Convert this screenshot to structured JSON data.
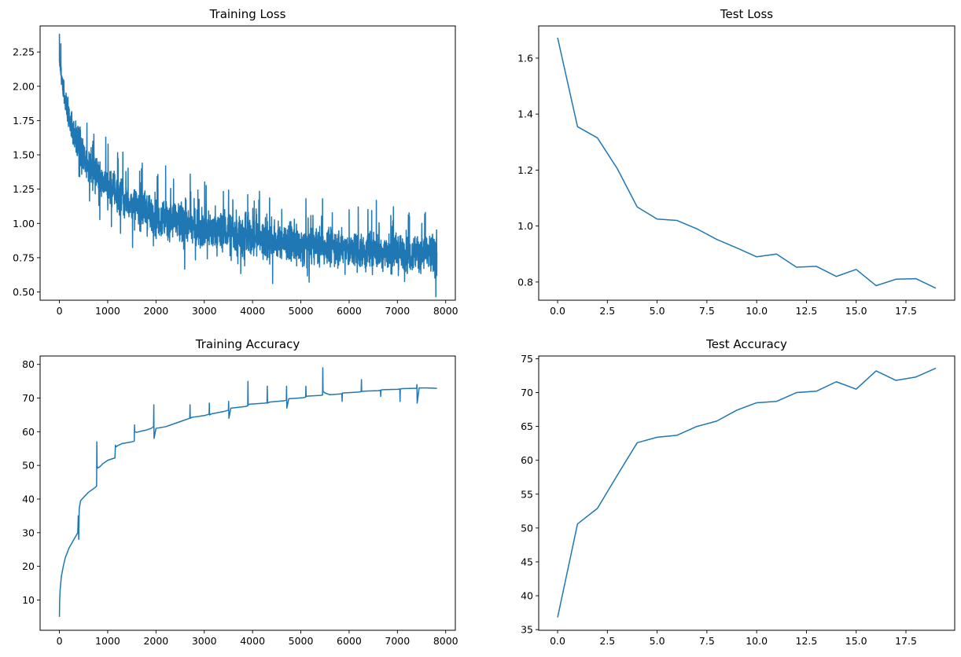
{
  "chart_data": [
    {
      "id": "training-loss",
      "type": "line",
      "title": "Training Loss",
      "xlabel": "",
      "ylabel": "",
      "xlim": [
        -400,
        8200
      ],
      "ylim": [
        0.44,
        2.44
      ],
      "xticks": [
        0,
        1000,
        2000,
        3000,
        4000,
        5000,
        6000,
        7000,
        8000
      ],
      "xtick_labels": [
        "0",
        "1000",
        "2000",
        "3000",
        "4000",
        "5000",
        "6000",
        "7000",
        "8000"
      ],
      "yticks": [
        0.5,
        0.75,
        1.0,
        1.25,
        1.5,
        1.75,
        2.0,
        2.25
      ],
      "ytick_labels": [
        "0.50",
        "0.75",
        "1.00",
        "1.25",
        "1.50",
        "1.75",
        "2.00",
        "2.25"
      ],
      "color": "#1f77b4",
      "series": [
        {
          "name": "training loss",
          "noisy": true,
          "n_points": 7820,
          "x": [
            0,
            50,
            100,
            200,
            300,
            400,
            500,
            750,
            1000,
            1250,
            1500,
            2000,
            2500,
            3000,
            3500,
            4000,
            4500,
            5000,
            5500,
            6000,
            6500,
            7000,
            7500,
            7820
          ],
          "y": [
            2.22,
            2.05,
            1.92,
            1.78,
            1.66,
            1.56,
            1.48,
            1.38,
            1.28,
            1.2,
            1.14,
            1.05,
            1.0,
            0.96,
            0.93,
            0.9,
            0.87,
            0.84,
            0.83,
            0.81,
            0.8,
            0.79,
            0.78,
            0.77
          ],
          "spread": [
            0.1,
            0.11,
            0.12,
            0.13,
            0.14,
            0.15,
            0.15,
            0.15,
            0.15,
            0.15,
            0.15,
            0.16,
            0.16,
            0.16,
            0.16,
            0.16,
            0.16,
            0.16,
            0.15,
            0.15,
            0.15,
            0.15,
            0.15,
            0.15
          ],
          "spikes": [
            [
              0,
              2.38
            ],
            [
              30,
              2.31
            ],
            [
              1700,
              1.4
            ],
            [
              2200,
              1.42
            ],
            [
              3900,
              1.21
            ],
            [
              5450,
              1.18
            ],
            [
              6000,
              1.1
            ],
            [
              7250,
              1.05
            ],
            [
              7580,
              1.08
            ],
            [
              7810,
              0.87
            ],
            [
              7815,
              0.62
            ]
          ]
        }
      ]
    },
    {
      "id": "test-loss",
      "type": "line",
      "title": "Test Loss",
      "xlabel": "",
      "ylabel": "",
      "xlim": [
        -0.95,
        19.95
      ],
      "ylim": [
        0.735,
        1.715
      ],
      "xticks": [
        0,
        2.5,
        5,
        7.5,
        10,
        12.5,
        15,
        17.5
      ],
      "xtick_labels": [
        "0.0",
        "2.5",
        "5.0",
        "7.5",
        "10.0",
        "12.5",
        "15.0",
        "17.5"
      ],
      "yticks": [
        0.8,
        1.0,
        1.2,
        1.4,
        1.6
      ],
      "ytick_labels": [
        "0.8",
        "1.0",
        "1.2",
        "1.4",
        "1.6"
      ],
      "color": "#1f77b4",
      "series": [
        {
          "name": "test loss",
          "x": [
            0,
            1,
            2,
            3,
            4,
            5,
            6,
            7,
            8,
            9,
            10,
            11,
            12,
            13,
            14,
            15,
            16,
            17,
            18,
            19
          ],
          "y": [
            1.673,
            1.355,
            1.315,
            1.205,
            1.068,
            1.025,
            1.02,
            0.99,
            0.952,
            0.922,
            0.89,
            0.9,
            0.853,
            0.856,
            0.82,
            0.845,
            0.787,
            0.81,
            0.812,
            0.778
          ]
        }
      ]
    },
    {
      "id": "training-accuracy",
      "type": "line",
      "title": "Training Accuracy",
      "xlabel": "",
      "ylabel": "",
      "xlim": [
        -400,
        8200
      ],
      "ylim": [
        1.0,
        82.5
      ],
      "xticks": [
        0,
        1000,
        2000,
        3000,
        4000,
        5000,
        6000,
        7000,
        8000
      ],
      "xtick_labels": [
        "0",
        "1000",
        "2000",
        "3000",
        "4000",
        "5000",
        "6000",
        "7000",
        "8000"
      ],
      "yticks": [
        10,
        20,
        30,
        40,
        50,
        60,
        70,
        80
      ],
      "ytick_labels": [
        "10",
        "20",
        "30",
        "40",
        "50",
        "60",
        "70",
        "80"
      ],
      "color": "#1f77b4",
      "series": [
        {
          "name": "training accuracy",
          "x": [
            0,
            5,
            15,
            40,
            80,
            120,
            200,
            300,
            380,
            390,
            400,
            410,
            420,
            440,
            500,
            600,
            700,
            770,
            775,
            780,
            790,
            830,
            900,
            1000,
            1100,
            1150,
            1160,
            1170,
            1200,
            1300,
            1500,
            1550,
            1555,
            1560,
            1600,
            1700,
            1800,
            1900,
            1950,
            1955,
            1960,
            2000,
            2200,
            2400,
            2600,
            2700,
            2705,
            2710,
            2750,
            3000,
            3100,
            3105,
            3110,
            3150,
            3400,
            3500,
            3505,
            3510,
            3550,
            3850,
            3900,
            3905,
            3910,
            3950,
            4250,
            4300,
            4305,
            4310,
            4350,
            4650,
            4700,
            4705,
            4710,
            4750,
            5050,
            5100,
            5105,
            5110,
            5150,
            5400,
            5450,
            5455,
            5460,
            5500,
            5600,
            5800,
            5850,
            5855,
            5860,
            6000,
            6200,
            6250,
            6255,
            6260,
            6400,
            6600,
            6650,
            6655,
            6660,
            6700,
            7000,
            7050,
            7055,
            7060,
            7100,
            7350,
            7400,
            7405,
            7410,
            7450,
            7600,
            7820
          ],
          "y": [
            5,
            10,
            13,
            17,
            20,
            22.5,
            25.5,
            28,
            30,
            35,
            28,
            37,
            38,
            39.5,
            40.5,
            42,
            43,
            43.8,
            57,
            50,
            49.2,
            49.5,
            50.5,
            51.5,
            52,
            52.2,
            56,
            55.5,
            55.8,
            56.5,
            57,
            57.2,
            62,
            60,
            59.8,
            60.2,
            60.5,
            61,
            61.5,
            68,
            58,
            61,
            61.5,
            62.5,
            63.5,
            64,
            68,
            64,
            64.3,
            64.8,
            65.2,
            68.5,
            65,
            65.3,
            66,
            66.4,
            69,
            64,
            67,
            67.5,
            67.7,
            75,
            68,
            68.2,
            68.5,
            68.6,
            73.5,
            68.5,
            68.8,
            69.2,
            69.4,
            73.5,
            67,
            69.8,
            70.1,
            70.3,
            73.5,
            70.5,
            70.6,
            70.8,
            70.9,
            79,
            72,
            71.5,
            71,
            71.2,
            71.3,
            69,
            71.5,
            71.6,
            71.8,
            71.9,
            75.5,
            72,
            72.1,
            72.2,
            72.3,
            70.5,
            72.4,
            72.5,
            72.6,
            72.7,
            69,
            72.7,
            72.8,
            72.9,
            72.9,
            74,
            68.5,
            73,
            73,
            72.9
          ]
        }
      ]
    },
    {
      "id": "test-accuracy",
      "type": "line",
      "title": "Test Accuracy",
      "xlabel": "",
      "ylabel": "",
      "xlim": [
        -0.95,
        19.95
      ],
      "ylim": [
        34.9,
        75.4
      ],
      "xticks": [
        0,
        2.5,
        5,
        7.5,
        10,
        12.5,
        15,
        17.5
      ],
      "xtick_labels": [
        "0.0",
        "2.5",
        "5.0",
        "7.5",
        "10.0",
        "12.5",
        "15.0",
        "17.5"
      ],
      "yticks": [
        35,
        40,
        45,
        50,
        55,
        60,
        65,
        70,
        75
      ],
      "ytick_labels": [
        "35",
        "40",
        "45",
        "50",
        "55",
        "60",
        "65",
        "70",
        "75"
      ],
      "color": "#1f77b4",
      "series": [
        {
          "name": "test accuracy",
          "x": [
            0,
            1,
            2,
            3,
            4,
            5,
            6,
            7,
            8,
            9,
            10,
            11,
            12,
            13,
            14,
            15,
            16,
            17,
            18,
            19
          ],
          "y": [
            36.8,
            50.6,
            52.9,
            57.8,
            62.6,
            63.4,
            63.7,
            65.0,
            65.8,
            67.4,
            68.5,
            68.7,
            70.0,
            70.2,
            71.6,
            70.5,
            73.2,
            71.8,
            72.3,
            73.6
          ]
        }
      ]
    }
  ]
}
